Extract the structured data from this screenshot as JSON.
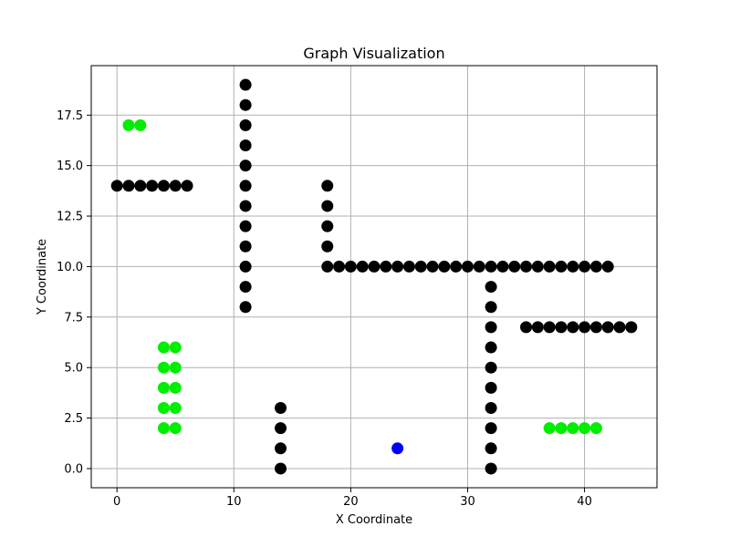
{
  "chart_data": {
    "type": "scatter",
    "title": "Graph Visualization",
    "xlabel": "X Coordinate",
    "ylabel": "Y Coordinate",
    "xlim": [
      -2.2,
      46.2
    ],
    "ylim": [
      -0.95,
      19.95
    ],
    "xticks": [
      0,
      10,
      20,
      30,
      40
    ],
    "xtick_labels": [
      "0",
      "10",
      "20",
      "30",
      "40"
    ],
    "yticks": [
      0,
      2.5,
      5,
      7.5,
      10,
      12.5,
      15,
      17.5
    ],
    "ytick_labels": [
      "0.0",
      "2.5",
      "5.0",
      "7.5",
      "10.0",
      "12.5",
      "15.0",
      "17.5"
    ],
    "grid": true,
    "legend": "none",
    "series": [
      {
        "color": "#000000",
        "points": [
          [
            0,
            14
          ],
          [
            1,
            14
          ],
          [
            2,
            14
          ],
          [
            3,
            14
          ],
          [
            4,
            14
          ],
          [
            5,
            14
          ],
          [
            6,
            14
          ],
          [
            11,
            19
          ],
          [
            11,
            18
          ],
          [
            11,
            17
          ],
          [
            11,
            16
          ],
          [
            11,
            15
          ],
          [
            11,
            14
          ],
          [
            11,
            13
          ],
          [
            11,
            12
          ],
          [
            11,
            11
          ],
          [
            11,
            10
          ],
          [
            11,
            9
          ],
          [
            11,
            8
          ],
          [
            18,
            14
          ],
          [
            18,
            13
          ],
          [
            18,
            12
          ],
          [
            18,
            11
          ],
          [
            18,
            10
          ],
          [
            19,
            10
          ],
          [
            20,
            10
          ],
          [
            21,
            10
          ],
          [
            22,
            10
          ],
          [
            23,
            10
          ],
          [
            24,
            10
          ],
          [
            25,
            10
          ],
          [
            26,
            10
          ],
          [
            27,
            10
          ],
          [
            28,
            10
          ],
          [
            29,
            10
          ],
          [
            30,
            10
          ],
          [
            31,
            10
          ],
          [
            32,
            10
          ],
          [
            33,
            10
          ],
          [
            34,
            10
          ],
          [
            35,
            10
          ],
          [
            36,
            10
          ],
          [
            37,
            10
          ],
          [
            38,
            10
          ],
          [
            39,
            10
          ],
          [
            40,
            10
          ],
          [
            41,
            10
          ],
          [
            42,
            10
          ],
          [
            32,
            9
          ],
          [
            32,
            8
          ],
          [
            32,
            7
          ],
          [
            32,
            6
          ],
          [
            32,
            5
          ],
          [
            32,
            4
          ],
          [
            32,
            3
          ],
          [
            32,
            2
          ],
          [
            32,
            1
          ],
          [
            32,
            0
          ],
          [
            35,
            7
          ],
          [
            36,
            7
          ],
          [
            37,
            7
          ],
          [
            38,
            7
          ],
          [
            39,
            7
          ],
          [
            40,
            7
          ],
          [
            41,
            7
          ],
          [
            42,
            7
          ],
          [
            43,
            7
          ],
          [
            44,
            7
          ],
          [
            14,
            3
          ],
          [
            14,
            2
          ],
          [
            14,
            1
          ],
          [
            14,
            0
          ]
        ]
      },
      {
        "color": "#00ee00",
        "points": [
          [
            1,
            17
          ],
          [
            2,
            17
          ],
          [
            4,
            6
          ],
          [
            5,
            6
          ],
          [
            4,
            5
          ],
          [
            5,
            5
          ],
          [
            4,
            4
          ],
          [
            5,
            4
          ],
          [
            4,
            3
          ],
          [
            5,
            3
          ],
          [
            4,
            2
          ],
          [
            5,
            2
          ],
          [
            37,
            2
          ],
          [
            38,
            2
          ],
          [
            39,
            2
          ],
          [
            40,
            2
          ],
          [
            41,
            2
          ]
        ]
      },
      {
        "color": "#0000ff",
        "points": [
          [
            24,
            1
          ]
        ]
      }
    ]
  }
}
